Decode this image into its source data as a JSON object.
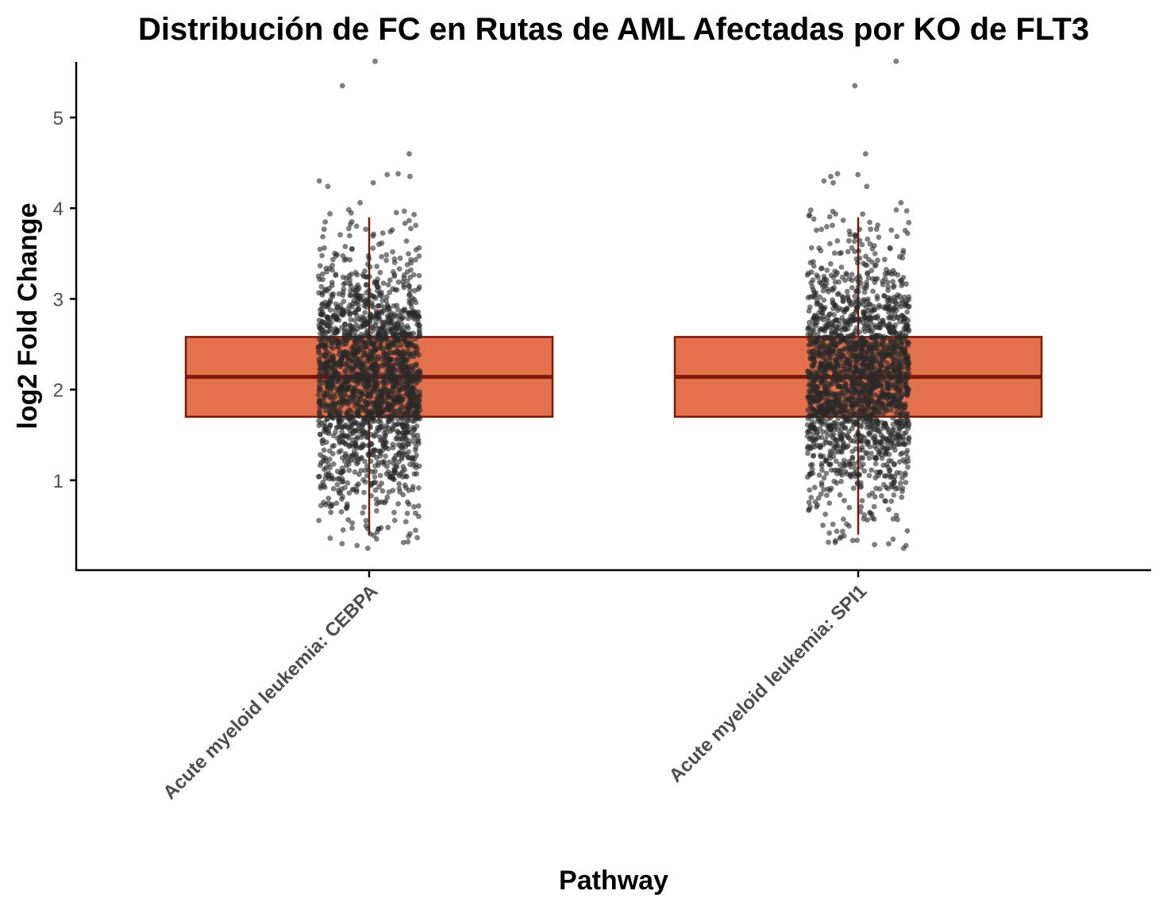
{
  "chart_data": {
    "type": "box",
    "title": "Distribución de FC en Rutas de AML Afectadas por KO de FLT3",
    "xlabel": "Pathway",
    "ylabel": "log2 Fold Change",
    "ylim": [
      0.0,
      5.62
    ],
    "yticks": [
      "1",
      "2",
      "3",
      "4",
      "5"
    ],
    "categories": [
      "Acute myeloid leukemia: CEBPA",
      "Acute myeloid leukemia: SPI1"
    ],
    "boxes": [
      {
        "q1": 1.7,
        "median": 2.14,
        "q3": 2.58,
        "whisker_low": 0.4,
        "whisker_high": 3.9
      },
      {
        "q1": 1.7,
        "median": 2.14,
        "q3": 2.58,
        "whisker_low": 0.4,
        "whisker_high": 3.9
      }
    ],
    "points_per_category": 2000,
    "outliers": [
      [
        5.62,
        5.35,
        4.6,
        4.38,
        4.37,
        4.35,
        4.3,
        4.28,
        4.24,
        4.06,
        0.3,
        0.28,
        0.25
      ],
      [
        5.62,
        5.35,
        4.6,
        4.38,
        4.37,
        4.35,
        4.3,
        4.28,
        4.24,
        4.06,
        0.35,
        0.28,
        0.25
      ]
    ],
    "grid": false,
    "legend": "none",
    "colors": {
      "box_fill": "#e5704c",
      "box_stroke": "#7a1a08",
      "points": "#2a2a2a"
    }
  }
}
